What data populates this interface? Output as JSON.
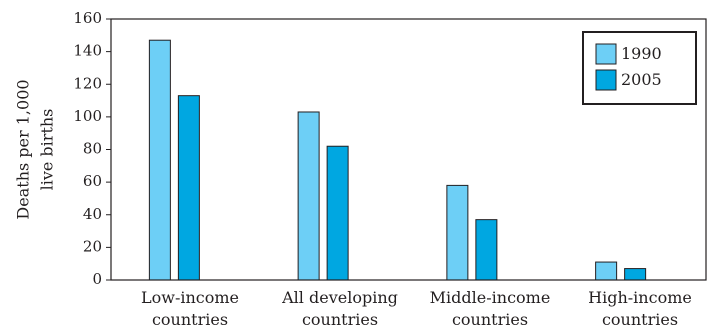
{
  "chart_data": {
    "type": "bar",
    "ylabel_lines": [
      "Deaths per 1,000",
      "live births"
    ],
    "xlabel": "",
    "ylim": [
      0,
      160
    ],
    "y_ticks": [
      0,
      20,
      40,
      60,
      80,
      100,
      120,
      140,
      160
    ],
    "grid": false,
    "legend_position": "top-right",
    "categories": [
      [
        "Low-income",
        "countries"
      ],
      [
        "All developing",
        "countries"
      ],
      [
        "Middle-income",
        "countries"
      ],
      [
        "High-income",
        "countries"
      ]
    ],
    "series": [
      {
        "name": "1990",
        "color": "#6dcff6",
        "values": [
          147,
          103,
          58,
          11
        ]
      },
      {
        "name": "2005",
        "color": "#00a7e1",
        "values": [
          113,
          82,
          37,
          7
        ]
      }
    ]
  }
}
